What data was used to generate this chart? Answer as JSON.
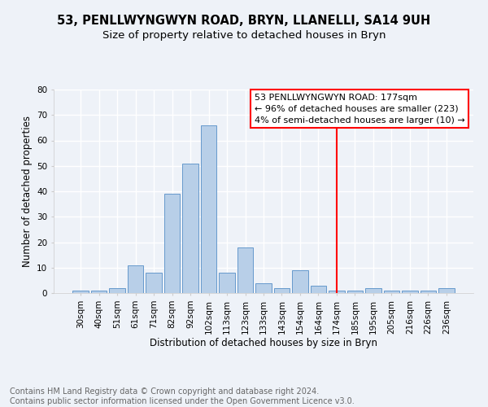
{
  "title1": "53, PENLLWYNGWYN ROAD, BRYN, LLANELLI, SA14 9UH",
  "title2": "Size of property relative to detached houses in Bryn",
  "xlabel": "Distribution of detached houses by size in Bryn",
  "ylabel": "Number of detached properties",
  "footer1": "Contains HM Land Registry data © Crown copyright and database right 2024.",
  "footer2": "Contains public sector information licensed under the Open Government Licence v3.0.",
  "categories": [
    "30sqm",
    "40sqm",
    "51sqm",
    "61sqm",
    "71sqm",
    "82sqm",
    "92sqm",
    "102sqm",
    "113sqm",
    "123sqm",
    "133sqm",
    "143sqm",
    "154sqm",
    "164sqm",
    "174sqm",
    "185sqm",
    "195sqm",
    "205sqm",
    "216sqm",
    "226sqm",
    "236sqm"
  ],
  "values": [
    1,
    1,
    2,
    11,
    8,
    39,
    51,
    66,
    8,
    18,
    4,
    2,
    9,
    3,
    1,
    1,
    2,
    1,
    1,
    1,
    2
  ],
  "bar_color": "#b8cfe8",
  "bar_edge_color": "#6699cc",
  "vline_color": "red",
  "vline_index": 14,
  "annotation_text": "53 PENLLWYNGWYN ROAD: 177sqm\n← 96% of detached houses are smaller (223)\n4% of semi-detached houses are larger (10) →",
  "annotation_box_color": "white",
  "annotation_box_edge_color": "red",
  "ylim": [
    0,
    80
  ],
  "yticks": [
    0,
    10,
    20,
    30,
    40,
    50,
    60,
    70,
    80
  ],
  "background_color": "#eef2f8",
  "grid_color": "white",
  "title1_fontsize": 10.5,
  "title2_fontsize": 9.5,
  "xlabel_fontsize": 8.5,
  "ylabel_fontsize": 8.5,
  "tick_fontsize": 7.5,
  "footer_fontsize": 7,
  "annotation_fontsize": 8
}
